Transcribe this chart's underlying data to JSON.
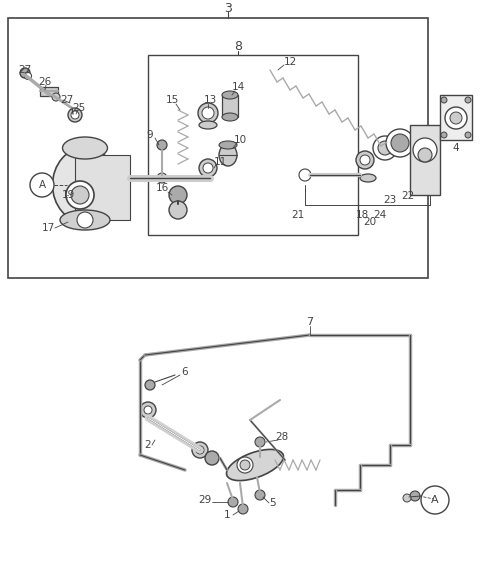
{
  "bg_color": "#ffffff",
  "line_color": "#444444",
  "gray1": "#888888",
  "gray2": "#aaaaaa",
  "gray3": "#cccccc",
  "fig_width": 4.8,
  "fig_height": 5.66,
  "dpi": 100
}
